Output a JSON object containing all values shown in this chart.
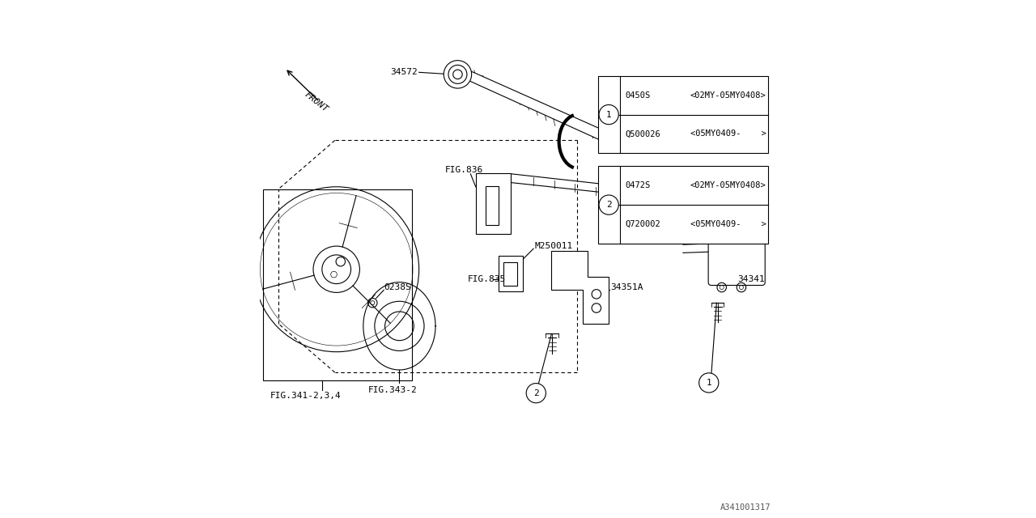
{
  "bg_color": "#ffffff",
  "watermark": "A341001317",
  "legend_items": [
    {
      "num": "1",
      "rows": [
        {
          "part": "0450S",
          "range": "<02MY-05MY0408>"
        },
        {
          "part": "Q500026",
          "range": "<05MY0409-    >"
        }
      ]
    },
    {
      "num": "2",
      "rows": [
        {
          "part": "0472S",
          "range": "<02MY-05MY0408>"
        },
        {
          "part": "Q720002",
          "range": "<05MY0409-    >"
        }
      ]
    }
  ]
}
